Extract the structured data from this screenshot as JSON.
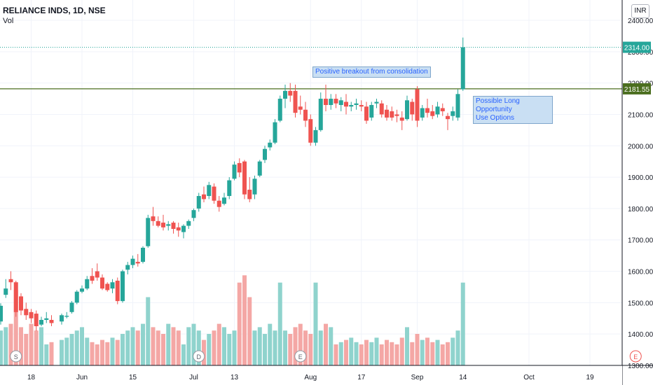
{
  "header": {
    "symbol_title": "RELIANCE INDS, 1D, NSE",
    "volume_label": "Vol",
    "currency": "INR"
  },
  "annotations": {
    "breakout": "Positive breakout from consolidation",
    "opportunity_line1": "Possible Long Opportunity",
    "opportunity_line2": "Use Options"
  },
  "colors": {
    "up": "#26a69a",
    "down": "#ef5350",
    "up_volume": "#8fd3cd",
    "down_volume": "#f4a7a5",
    "resistance_line": "#4b6e1f",
    "price_line": "#26a69a",
    "grid": "#f0f3fa",
    "axis_text": "#131722"
  },
  "price_labels": {
    "last_price": "2314.00",
    "resistance": "2181.55"
  },
  "event_markers": [
    {
      "letter": "S",
      "x_date": "2020-05-13"
    },
    {
      "letter": "D",
      "x_date": "2020-07-02"
    },
    {
      "letter": "E",
      "x_date": "2020-07-30"
    },
    {
      "letter": "E",
      "x_date": "2020-10-30"
    }
  ],
  "chart_data": {
    "type": "candlestick",
    "title": "RELIANCE INDS, 1D, NSE",
    "ylim": [
      1300,
      2430
    ],
    "y_ticks": [
      1300,
      1400,
      1500,
      1600,
      1700,
      1800,
      1900,
      2000,
      2100,
      2200,
      2300,
      2400
    ],
    "x_tick_labels": [
      {
        "date": "2020-05-18",
        "label": "18"
      },
      {
        "date": "2020-06-01",
        "label": "Jun"
      },
      {
        "date": "2020-06-15",
        "label": "15"
      },
      {
        "date": "2020-07-01",
        "label": "Jul"
      },
      {
        "date": "2020-07-13",
        "label": "13"
      },
      {
        "date": "2020-08-03",
        "label": "Aug"
      },
      {
        "date": "2020-08-17",
        "label": "17"
      },
      {
        "date": "2020-09-01",
        "label": "Sep"
      },
      {
        "date": "2020-09-14",
        "label": "14"
      },
      {
        "date": "2020-10-01",
        "label": "Oct"
      },
      {
        "date": "2020-10-19",
        "label": "19"
      }
    ],
    "resistance_level": 2181.55,
    "last_price": 2314.0,
    "candles": [
      {
        "d": "2020-05-08",
        "o": 1440,
        "h": 1498,
        "l": 1430,
        "c": 1490,
        "v": "M"
      },
      {
        "d": "2020-05-11",
        "o": 1525,
        "h": 1575,
        "l": 1515,
        "c": 1545,
        "v": "M"
      },
      {
        "d": "2020-05-12",
        "o": 1575,
        "h": 1600,
        "l": 1540,
        "c": 1565,
        "v": "M"
      },
      {
        "d": "2020-05-13",
        "o": 1565,
        "h": 1570,
        "l": 1455,
        "c": 1470,
        "v": "H"
      },
      {
        "d": "2020-05-14",
        "o": 1520,
        "h": 1530,
        "l": 1460,
        "c": 1475,
        "v": "M"
      },
      {
        "d": "2020-05-15",
        "o": 1480,
        "h": 1500,
        "l": 1445,
        "c": 1460,
        "v": "M"
      },
      {
        "d": "2020-05-18",
        "o": 1470,
        "h": 1480,
        "l": 1435,
        "c": 1450,
        "v": "M"
      },
      {
        "d": "2020-05-19",
        "o": 1465,
        "h": 1475,
        "l": 1410,
        "c": 1425,
        "v": "M"
      },
      {
        "d": "2020-05-20",
        "o": 1430,
        "h": 1455,
        "l": 1425,
        "c": 1445,
        "v": "M"
      },
      {
        "d": "2020-05-21",
        "o": 1445,
        "h": 1470,
        "l": 1435,
        "c": 1450,
        "v": "L"
      },
      {
        "d": "2020-05-22",
        "o": 1445,
        "h": 1460,
        "l": 1425,
        "c": 1435,
        "v": "L"
      },
      {
        "d": "2020-05-26",
        "o": 1440,
        "h": 1465,
        "l": 1430,
        "c": 1460,
        "v": "L"
      },
      {
        "d": "2020-05-27",
        "o": 1455,
        "h": 1470,
        "l": 1450,
        "c": 1458,
        "v": "L"
      },
      {
        "d": "2020-05-28",
        "o": 1470,
        "h": 1505,
        "l": 1465,
        "c": 1500,
        "v": "M"
      },
      {
        "d": "2020-05-29",
        "o": 1500,
        "h": 1540,
        "l": 1495,
        "c": 1535,
        "v": "M"
      },
      {
        "d": "2020-06-01",
        "o": 1535,
        "h": 1555,
        "l": 1530,
        "c": 1545,
        "v": "M"
      },
      {
        "d": "2020-06-02",
        "o": 1545,
        "h": 1585,
        "l": 1540,
        "c": 1575,
        "v": "L"
      },
      {
        "d": "2020-06-03",
        "o": 1585,
        "h": 1610,
        "l": 1560,
        "c": 1570,
        "v": "L"
      },
      {
        "d": "2020-06-04",
        "o": 1600,
        "h": 1625,
        "l": 1570,
        "c": 1580,
        "v": "L"
      },
      {
        "d": "2020-06-05",
        "o": 1580,
        "h": 1590,
        "l": 1540,
        "c": 1545,
        "v": "L"
      },
      {
        "d": "2020-06-08",
        "o": 1560,
        "h": 1565,
        "l": 1535,
        "c": 1540,
        "v": "L"
      },
      {
        "d": "2020-06-09",
        "o": 1545,
        "h": 1575,
        "l": 1530,
        "c": 1565,
        "v": "L"
      },
      {
        "d": "2020-06-10",
        "o": 1570,
        "h": 1580,
        "l": 1495,
        "c": 1505,
        "v": "L"
      },
      {
        "d": "2020-06-11",
        "o": 1505,
        "h": 1605,
        "l": 1500,
        "c": 1600,
        "v": "M"
      },
      {
        "d": "2020-06-12",
        "o": 1605,
        "h": 1630,
        "l": 1590,
        "c": 1620,
        "v": "M"
      },
      {
        "d": "2020-06-15",
        "o": 1620,
        "h": 1650,
        "l": 1610,
        "c": 1640,
        "v": "M"
      },
      {
        "d": "2020-06-16",
        "o": 1630,
        "h": 1655,
        "l": 1615,
        "c": 1625,
        "v": "M"
      },
      {
        "d": "2020-06-17",
        "o": 1630,
        "h": 1680,
        "l": 1625,
        "c": 1675,
        "v": "M"
      },
      {
        "d": "2020-06-18",
        "o": 1680,
        "h": 1780,
        "l": 1675,
        "c": 1770,
        "v": "H"
      },
      {
        "d": "2020-06-19",
        "o": 1775,
        "h": 1805,
        "l": 1745,
        "c": 1760,
        "v": "M"
      },
      {
        "d": "2020-06-22",
        "o": 1760,
        "h": 1775,
        "l": 1740,
        "c": 1745,
        "v": "M"
      },
      {
        "d": "2020-06-23",
        "o": 1755,
        "h": 1780,
        "l": 1730,
        "c": 1740,
        "v": "M"
      },
      {
        "d": "2020-06-24",
        "o": 1745,
        "h": 1760,
        "l": 1730,
        "c": 1750,
        "v": "M"
      },
      {
        "d": "2020-06-25",
        "o": 1755,
        "h": 1760,
        "l": 1720,
        "c": 1735,
        "v": "M"
      },
      {
        "d": "2020-06-26",
        "o": 1740,
        "h": 1755,
        "l": 1710,
        "c": 1730,
        "v": "M"
      },
      {
        "d": "2020-06-29",
        "o": 1725,
        "h": 1750,
        "l": 1705,
        "c": 1745,
        "v": "L"
      },
      {
        "d": "2020-06-30",
        "o": 1745,
        "h": 1765,
        "l": 1735,
        "c": 1760,
        "v": "M"
      },
      {
        "d": "2020-07-01",
        "o": 1770,
        "h": 1800,
        "l": 1760,
        "c": 1795,
        "v": "M"
      },
      {
        "d": "2020-07-02",
        "o": 1800,
        "h": 1850,
        "l": 1790,
        "c": 1840,
        "v": "M"
      },
      {
        "d": "2020-07-03",
        "o": 1845,
        "h": 1870,
        "l": 1820,
        "c": 1830,
        "v": "L"
      },
      {
        "d": "2020-07-06",
        "o": 1840,
        "h": 1885,
        "l": 1830,
        "c": 1875,
        "v": "M"
      },
      {
        "d": "2020-07-07",
        "o": 1870,
        "h": 1880,
        "l": 1815,
        "c": 1825,
        "v": "M"
      },
      {
        "d": "2020-07-08",
        "o": 1825,
        "h": 1840,
        "l": 1790,
        "c": 1805,
        "v": "M"
      },
      {
        "d": "2020-07-09",
        "o": 1815,
        "h": 1850,
        "l": 1810,
        "c": 1835,
        "v": "M"
      },
      {
        "d": "2020-07-10",
        "o": 1840,
        "h": 1900,
        "l": 1830,
        "c": 1890,
        "v": "M"
      },
      {
        "d": "2020-07-13",
        "o": 1895,
        "h": 1950,
        "l": 1890,
        "c": 1940,
        "v": "M"
      },
      {
        "d": "2020-07-14",
        "o": 1945,
        "h": 1960,
        "l": 1900,
        "c": 1915,
        "v": "H"
      },
      {
        "d": "2020-07-15",
        "o": 1950,
        "h": 1955,
        "l": 1830,
        "c": 1845,
        "v": "H"
      },
      {
        "d": "2020-07-16",
        "o": 1860,
        "h": 1900,
        "l": 1820,
        "c": 1830,
        "v": "H"
      },
      {
        "d": "2020-07-17",
        "o": 1845,
        "h": 1905,
        "l": 1830,
        "c": 1895,
        "v": "M"
      },
      {
        "d": "2020-07-20",
        "o": 1905,
        "h": 1955,
        "l": 1900,
        "c": 1950,
        "v": "M"
      },
      {
        "d": "2020-07-21",
        "o": 1955,
        "h": 2000,
        "l": 1945,
        "c": 1990,
        "v": "M"
      },
      {
        "d": "2020-07-22",
        "o": 1995,
        "h": 2020,
        "l": 1985,
        "c": 2010,
        "v": "M"
      },
      {
        "d": "2020-07-23",
        "o": 2010,
        "h": 2085,
        "l": 2005,
        "c": 2075,
        "v": "M"
      },
      {
        "d": "2020-07-24",
        "o": 2080,
        "h": 2160,
        "l": 2075,
        "c": 2150,
        "v": "H"
      },
      {
        "d": "2020-07-27",
        "o": 2150,
        "h": 2195,
        "l": 2120,
        "c": 2175,
        "v": "M"
      },
      {
        "d": "2020-07-28",
        "o": 2175,
        "h": 2200,
        "l": 2140,
        "c": 2160,
        "v": "M"
      },
      {
        "d": "2020-07-29",
        "o": 2175,
        "h": 2195,
        "l": 2090,
        "c": 2105,
        "v": "M"
      },
      {
        "d": "2020-07-30",
        "o": 2125,
        "h": 2160,
        "l": 2100,
        "c": 2115,
        "v": "M"
      },
      {
        "d": "2020-07-31",
        "o": 2115,
        "h": 2140,
        "l": 2060,
        "c": 2080,
        "v": "M"
      },
      {
        "d": "2020-08-03",
        "o": 2085,
        "h": 2100,
        "l": 2000,
        "c": 2010,
        "v": "M"
      },
      {
        "d": "2020-08-04",
        "o": 2010,
        "h": 2060,
        "l": 2000,
        "c": 2050,
        "v": "H"
      },
      {
        "d": "2020-08-05",
        "o": 2050,
        "h": 2170,
        "l": 2045,
        "c": 2150,
        "v": "M"
      },
      {
        "d": "2020-08-06",
        "o": 2150,
        "h": 2195,
        "l": 2110,
        "c": 2130,
        "v": "M"
      },
      {
        "d": "2020-08-07",
        "o": 2130,
        "h": 2165,
        "l": 2115,
        "c": 2150,
        "v": "M"
      },
      {
        "d": "2020-08-10",
        "o": 2150,
        "h": 2165,
        "l": 2120,
        "c": 2135,
        "v": "L"
      },
      {
        "d": "2020-08-11",
        "o": 2130,
        "h": 2155,
        "l": 2110,
        "c": 2145,
        "v": "L"
      },
      {
        "d": "2020-08-12",
        "o": 2140,
        "h": 2165,
        "l": 2100,
        "c": 2125,
        "v": "L"
      },
      {
        "d": "2020-08-13",
        "o": 2125,
        "h": 2140,
        "l": 2110,
        "c": 2130,
        "v": "L"
      },
      {
        "d": "2020-08-14",
        "o": 2130,
        "h": 2150,
        "l": 2115,
        "c": 2135,
        "v": "L"
      },
      {
        "d": "2020-08-17",
        "o": 2130,
        "h": 2145,
        "l": 2110,
        "c": 2125,
        "v": "L"
      },
      {
        "d": "2020-08-18",
        "o": 2125,
        "h": 2140,
        "l": 2070,
        "c": 2080,
        "v": "L"
      },
      {
        "d": "2020-08-19",
        "o": 2090,
        "h": 2140,
        "l": 2080,
        "c": 2130,
        "v": "L"
      },
      {
        "d": "2020-08-20",
        "o": 2135,
        "h": 2150,
        "l": 2120,
        "c": 2140,
        "v": "L"
      },
      {
        "d": "2020-08-21",
        "o": 2135,
        "h": 2145,
        "l": 2090,
        "c": 2100,
        "v": "L"
      },
      {
        "d": "2020-08-24",
        "o": 2115,
        "h": 2130,
        "l": 2080,
        "c": 2090,
        "v": "L"
      },
      {
        "d": "2020-08-25",
        "o": 2110,
        "h": 2125,
        "l": 2080,
        "c": 2090,
        "v": "L"
      },
      {
        "d": "2020-08-26",
        "o": 2100,
        "h": 2115,
        "l": 2075,
        "c": 2095,
        "v": "L"
      },
      {
        "d": "2020-08-27",
        "o": 2090,
        "h": 2110,
        "l": 2050,
        "c": 2080,
        "v": "L"
      },
      {
        "d": "2020-08-28",
        "o": 2085,
        "h": 2160,
        "l": 2080,
        "c": 2145,
        "v": "M"
      },
      {
        "d": "2020-08-31",
        "o": 2140,
        "h": 2150,
        "l": 2080,
        "c": 2100,
        "v": "L"
      },
      {
        "d": "2020-09-01",
        "o": 2180,
        "h": 2190,
        "l": 2060,
        "c": 2080,
        "v": "M"
      },
      {
        "d": "2020-09-02",
        "o": 2090,
        "h": 2130,
        "l": 2080,
        "c": 2120,
        "v": "L"
      },
      {
        "d": "2020-09-03",
        "o": 2120,
        "h": 2150,
        "l": 2090,
        "c": 2105,
        "v": "L"
      },
      {
        "d": "2020-09-04",
        "o": 2110,
        "h": 2130,
        "l": 2085,
        "c": 2095,
        "v": "L"
      },
      {
        "d": "2020-09-07",
        "o": 2100,
        "h": 2140,
        "l": 2090,
        "c": 2125,
        "v": "L"
      },
      {
        "d": "2020-09-08",
        "o": 2120,
        "h": 2135,
        "l": 2095,
        "c": 2110,
        "v": "L"
      },
      {
        "d": "2020-09-09",
        "o": 2095,
        "h": 2105,
        "l": 2050,
        "c": 2085,
        "v": "L"
      },
      {
        "d": "2020-09-10",
        "o": 2095,
        "h": 2125,
        "l": 2080,
        "c": 2110,
        "v": "L"
      },
      {
        "d": "2020-09-11",
        "o": 2090,
        "h": 2180,
        "l": 2080,
        "c": 2165,
        "v": "M"
      },
      {
        "d": "2020-09-14",
        "o": 2180,
        "h": 2345,
        "l": 2175,
        "c": 2314,
        "v": "H"
      }
    ],
    "volume_bars_note": "volume shown only as relative bar heights: H=high, M=medium, L=low",
    "volume_labels": [
      "Vol"
    ]
  }
}
